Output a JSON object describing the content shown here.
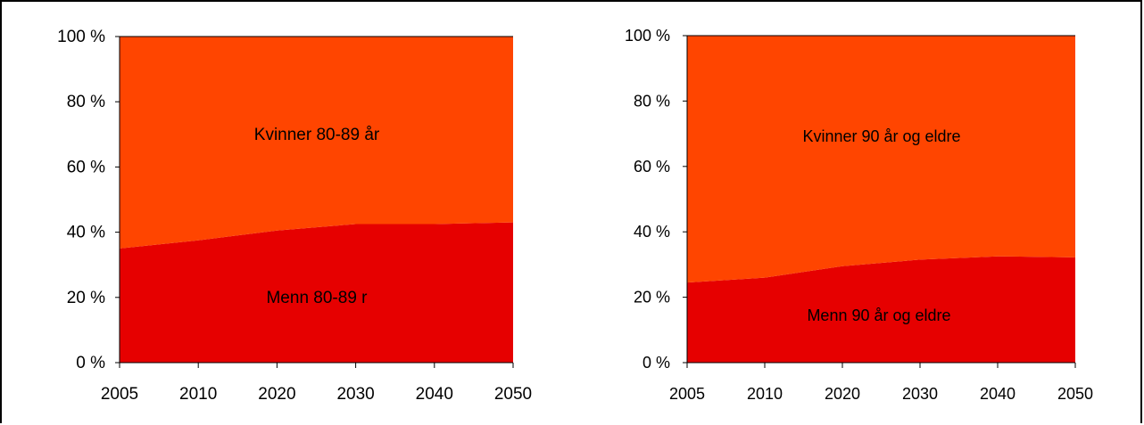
{
  "chart_data": [
    {
      "type": "area",
      "stacked": true,
      "percent": true,
      "categories": [
        "2005",
        "2010",
        "2020",
        "2030",
        "2040",
        "2050"
      ],
      "series": [
        {
          "name": "Menn 80-89 r",
          "values": [
            35,
            37.5,
            40.5,
            42.5,
            42.5,
            43
          ],
          "color": "#e60000"
        },
        {
          "name": "Kvinner 80-89 år",
          "values": [
            65,
            62.5,
            59.5,
            57.5,
            57.5,
            57
          ],
          "color": "#ff4500"
        }
      ],
      "y_ticks": [
        "0 %",
        "20 %",
        "40 %",
        "60 %",
        "80 %",
        "100 %"
      ],
      "ylim": [
        0,
        100
      ],
      "legend": "inline labels"
    },
    {
      "type": "area",
      "stacked": true,
      "percent": true,
      "categories": [
        "2005",
        "2010",
        "2020",
        "2030",
        "2040",
        "2050"
      ],
      "series": [
        {
          "name": "Menn 90 år og eldre",
          "values": [
            24.5,
            26,
            29.5,
            31.5,
            32.5,
            32.2
          ],
          "color": "#e60000"
        },
        {
          "name": "Kvinner 90 år og eldre",
          "values": [
            75.5,
            74,
            70.5,
            68.5,
            67.5,
            67.8
          ],
          "color": "#ff4500"
        }
      ],
      "y_ticks": [
        "0 %",
        "20 %",
        "40 %",
        "60 %",
        "80 %",
        "100 %"
      ],
      "ylim": [
        0,
        100
      ],
      "legend": "inline labels"
    }
  ]
}
